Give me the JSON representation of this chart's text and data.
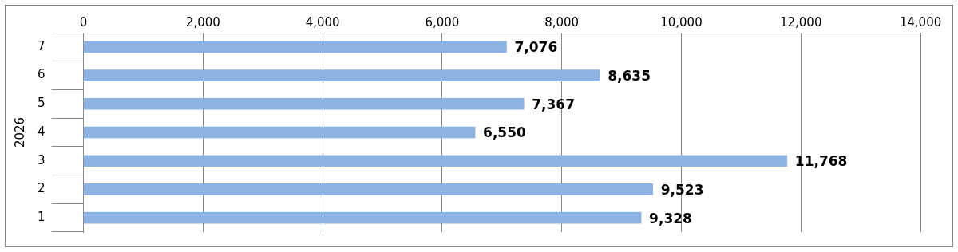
{
  "chart_data": {
    "type": "bar",
    "orientation": "horizontal",
    "ylabel": "2026",
    "categories": [
      "7",
      "6",
      "5",
      "4",
      "3",
      "2",
      "1"
    ],
    "values": [
      7076,
      8635,
      7367,
      6550,
      11768,
      9523,
      9328
    ],
    "value_labels": [
      "7,076",
      "8,635",
      "7,367",
      "6,550",
      "11,768",
      "9,523",
      "9,328"
    ],
    "color": "#8db3e2",
    "xlim": [
      0,
      14000
    ],
    "xticks": [
      {
        "value": 0,
        "label": "0"
      },
      {
        "value": 2000,
        "label": "2,000"
      },
      {
        "value": 4000,
        "label": "4,000"
      },
      {
        "value": 6000,
        "label": "6,000"
      },
      {
        "value": 8000,
        "label": "8,000"
      },
      {
        "value": 10000,
        "label": "10,000"
      },
      {
        "value": 12000,
        "label": "12,000"
      },
      {
        "value": 14000,
        "label": "14,000"
      }
    ],
    "grid": "x",
    "legend": false
  }
}
